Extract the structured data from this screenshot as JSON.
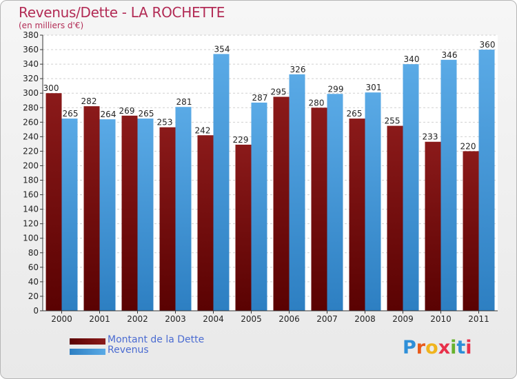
{
  "title": "Revenus/Dette - LA ROCHETTE",
  "subtitle": "(en milliers d'€)",
  "logo_text": "Proxiti",
  "chart_data": {
    "type": "bar",
    "categories": [
      "2000",
      "2001",
      "2002",
      "2003",
      "2004",
      "2005",
      "2006",
      "2007",
      "2008",
      "2009",
      "2010",
      "2011"
    ],
    "series": [
      {
        "name": "Montant de la Dette",
        "values": [
          300,
          282,
          269,
          253,
          242,
          229,
          295,
          280,
          265,
          255,
          233,
          220
        ],
        "color": "#8b1a1a",
        "color_dark": "#5a0202"
      },
      {
        "name": "Revenus",
        "values": [
          265,
          264,
          265,
          281,
          354,
          287,
          326,
          299,
          301,
          340,
          346,
          360
        ],
        "color": "#5aaae6",
        "color_dark": "#2d7fc2"
      }
    ],
    "ylim": [
      0,
      380
    ],
    "ytick_step": 20,
    "grid": true,
    "legend_position": "bottom-left",
    "title_color": "#b22b55"
  }
}
